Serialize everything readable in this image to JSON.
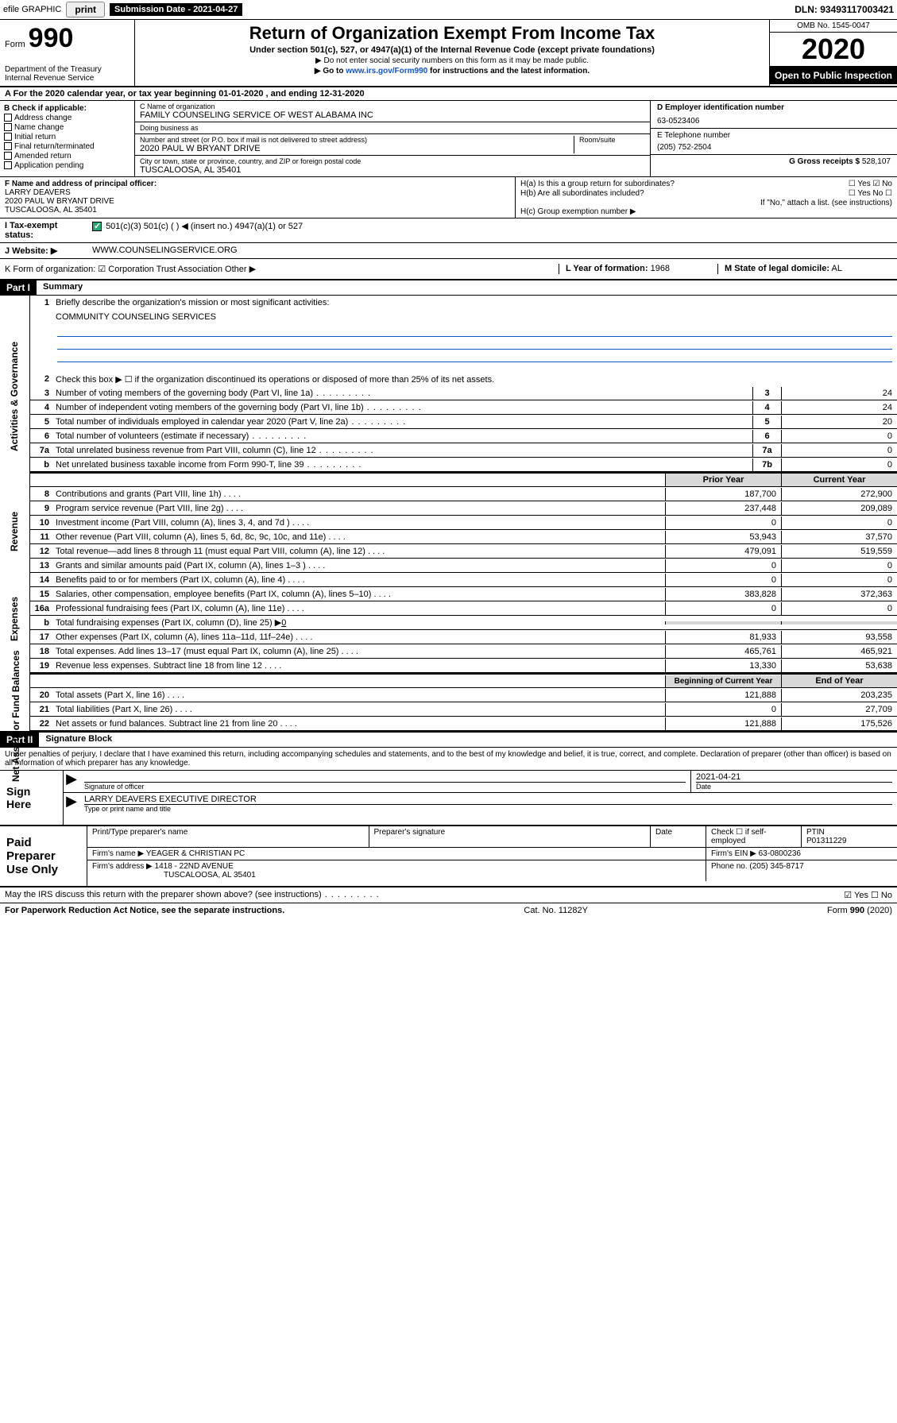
{
  "topbar": {
    "efile_label": "efile GRAPHIC",
    "print_btn": "print",
    "subdate_label": "Submission Date - ",
    "subdate": "2021-04-27",
    "dln": "DLN: 93493117003421"
  },
  "header": {
    "form_label": "Form",
    "form_num": "990",
    "dept": "Department of the Treasury\nInternal Revenue Service",
    "title": "Return of Organization Exempt From Income Tax",
    "subtitle": "Under section 501(c), 527, or 4947(a)(1) of the Internal Revenue Code (except private foundations)",
    "note1": "▶ Do not enter social security numbers on this form as it may be made public.",
    "note2_pre": "▶ Go to ",
    "note2_link": "www.irs.gov/Form990",
    "note2_post": " for instructions and the latest information.",
    "omb": "OMB No. 1545-0047",
    "year": "2020",
    "open_public": "Open to Public Inspection"
  },
  "line_a": "A For the 2020 calendar year, or tax year beginning 01-01-2020    , and ending 12-31-2020",
  "section_b": {
    "header": "B Check if applicable:",
    "items": [
      "Address change",
      "Name change",
      "Initial return",
      "Final return/terminated",
      "Amended return",
      "Application pending"
    ]
  },
  "section_c": {
    "name_label": "C Name of organization",
    "name": "FAMILY COUNSELING SERVICE OF WEST ALABAMA INC",
    "dba_label": "Doing business as",
    "dba": "",
    "addr_label": "Number and street (or P.O. box if mail is not delivered to street address)",
    "room_label": "Room/suite",
    "addr": "2020 PAUL W BRYANT DRIVE",
    "city_label": "City or town, state or province, country, and ZIP or foreign postal code",
    "city": "TUSCALOOSA, AL  35401"
  },
  "section_d": {
    "ein_label": "D Employer identification number",
    "ein": "63-0523406",
    "phone_label": "E Telephone number",
    "phone": "(205) 752-2504",
    "gross_label": "G Gross receipts $",
    "gross": "528,107"
  },
  "section_f": {
    "label": "F  Name and address of principal officer:",
    "name": "LARRY DEAVERS",
    "addr1": "2020 PAUL W BRYANT DRIVE",
    "addr2": "TUSCALOOSA, AL  35401"
  },
  "section_h": {
    "ha": "H(a)  Is this a group return for subordinates?",
    "ha_ans": "Yes  ☑ No",
    "hb": "H(b)  Are all subordinates included?",
    "hb_ans": "Yes    No",
    "hb_note": "If \"No,\" attach a list. (see instructions)",
    "hc": "H(c)  Group exemption number ▶"
  },
  "line_i": {
    "label": "I    Tax-exempt status:",
    "content": "501(c)(3)       501(c) (  ) ◀ (insert no.)       4947(a)(1) or       527"
  },
  "line_j": {
    "label": "J   Website: ▶",
    "content": "WWW.COUNSELINGSERVICE.ORG"
  },
  "line_k": {
    "left": "K Form of organization:  ☑ Corporation    Trust    Association    Other ▶",
    "mid_label": "L Year of formation:",
    "mid_val": "1968",
    "right_label": "M State of legal domicile:",
    "right_val": "AL"
  },
  "parts": {
    "p1": "Part I",
    "p1_title": "Summary",
    "p2": "Part II",
    "p2_title": "Signature Block"
  },
  "sidebars": {
    "r1": "Activities & Governance",
    "r2": "Revenue",
    "r3": "Expenses",
    "r4": "Net Assets or Fund Balances"
  },
  "summary": {
    "q1": "Briefly describe the organization's mission or most significant activities:",
    "mission": "COMMUNITY COUNSELING SERVICES",
    "q2": "Check this box ▶ ☐  if the organization discontinued its operations or disposed of more than 25% of its net assets.",
    "rows_single": [
      {
        "n": "3",
        "t": "Number of voting members of the governing body (Part VI, line 1a)",
        "box": "3",
        "v": "24"
      },
      {
        "n": "4",
        "t": "Number of independent voting members of the governing body (Part VI, line 1b)",
        "box": "4",
        "v": "24"
      },
      {
        "n": "5",
        "t": "Total number of individuals employed in calendar year 2020 (Part V, line 2a)",
        "box": "5",
        "v": "20"
      },
      {
        "n": "6",
        "t": "Total number of volunteers (estimate if necessary)",
        "box": "6",
        "v": "0"
      },
      {
        "n": "7a",
        "t": "Total unrelated business revenue from Part VIII, column (C), line 12",
        "box": "7a",
        "v": "0"
      },
      {
        "n": "b",
        "t": "Net unrelated business taxable income from Form 990-T, line 39",
        "box": "7b",
        "v": "0"
      }
    ],
    "col_headers": {
      "prior": "Prior Year",
      "current": "Current Year"
    },
    "rows_rev": [
      {
        "n": "8",
        "t": "Contributions and grants (Part VIII, line 1h)",
        "p": "187,700",
        "c": "272,900"
      },
      {
        "n": "9",
        "t": "Program service revenue (Part VIII, line 2g)",
        "p": "237,448",
        "c": "209,089"
      },
      {
        "n": "10",
        "t": "Investment income (Part VIII, column (A), lines 3, 4, and 7d )",
        "p": "0",
        "c": "0"
      },
      {
        "n": "11",
        "t": "Other revenue (Part VIII, column (A), lines 5, 6d, 8c, 9c, 10c, and 11e)",
        "p": "53,943",
        "c": "37,570"
      },
      {
        "n": "12",
        "t": "Total revenue—add lines 8 through 11 (must equal Part VIII, column (A), line 12)",
        "p": "479,091",
        "c": "519,559"
      }
    ],
    "rows_exp": [
      {
        "n": "13",
        "t": "Grants and similar amounts paid (Part IX, column (A), lines 1–3 )",
        "p": "0",
        "c": "0"
      },
      {
        "n": "14",
        "t": "Benefits paid to or for members (Part IX, column (A), line 4)",
        "p": "0",
        "c": "0"
      },
      {
        "n": "15",
        "t": "Salaries, other compensation, employee benefits (Part IX, column (A), lines 5–10)",
        "p": "383,828",
        "c": "372,363"
      },
      {
        "n": "16a",
        "t": "Professional fundraising fees (Part IX, column (A), line 11e)",
        "p": "0",
        "c": "0"
      }
    ],
    "row16b": {
      "n": "b",
      "t": "Total fundraising expenses (Part IX, column (D), line 25) ▶",
      "v": "0"
    },
    "rows_exp2": [
      {
        "n": "17",
        "t": "Other expenses (Part IX, column (A), lines 11a–11d, 11f–24e)",
        "p": "81,933",
        "c": "93,558"
      },
      {
        "n": "18",
        "t": "Total expenses. Add lines 13–17 (must equal Part IX, column (A), line 25)",
        "p": "465,761",
        "c": "465,921"
      },
      {
        "n": "19",
        "t": "Revenue less expenses. Subtract line 18 from line 12",
        "p": "13,330",
        "c": "53,638"
      }
    ],
    "col_headers2": {
      "prior": "Beginning of Current Year",
      "current": "End of Year"
    },
    "rows_net": [
      {
        "n": "20",
        "t": "Total assets (Part X, line 16)",
        "p": "121,888",
        "c": "203,235"
      },
      {
        "n": "21",
        "t": "Total liabilities (Part X, line 26)",
        "p": "0",
        "c": "27,709"
      },
      {
        "n": "22",
        "t": "Net assets or fund balances. Subtract line 21 from line 20",
        "p": "121,888",
        "c": "175,526"
      }
    ]
  },
  "perjury": "Under penalties of perjury, I declare that I have examined this return, including accompanying schedules and statements, and to the best of my knowledge and belief, it is true, correct, and complete. Declaration of preparer (other than officer) is based on all information of which preparer has any knowledge.",
  "sign": {
    "label": "Sign Here",
    "sig_label": "Signature of officer",
    "date": "2021-04-21",
    "date_label": "Date",
    "name": "LARRY DEAVERS  EXECUTIVE DIRECTOR",
    "name_label": "Type or print name and title"
  },
  "prep": {
    "label": "Paid Preparer Use Only",
    "h1": "Print/Type preparer's name",
    "h2": "Preparer's signature",
    "h3": "Date",
    "h4_pre": "Check ☐ if self-employed",
    "h5": "PTIN",
    "ptin": "P01311229",
    "firm_label": "Firm's name     ▶",
    "firm": "YEAGER & CHRISTIAN PC",
    "ein_label": "Firm's EIN ▶",
    "ein": "63-0800236",
    "addr_label": "Firm's address ▶",
    "addr1": "1418 - 22ND AVENUE",
    "addr2": "TUSCALOOSA, AL  35401",
    "phone_label": "Phone no.",
    "phone": "(205) 345-8717"
  },
  "footer": {
    "discuss": "May the IRS discuss this return with the preparer shown above? (see instructions)",
    "discuss_ans": "☑ Yes   ☐ No",
    "paperwork": "For Paperwork Reduction Act Notice, see the separate instructions.",
    "cat": "Cat. No. 11282Y",
    "form": "Form 990 (2020)"
  },
  "colors": {
    "link": "#1155cc",
    "check": "#2a7"
  }
}
